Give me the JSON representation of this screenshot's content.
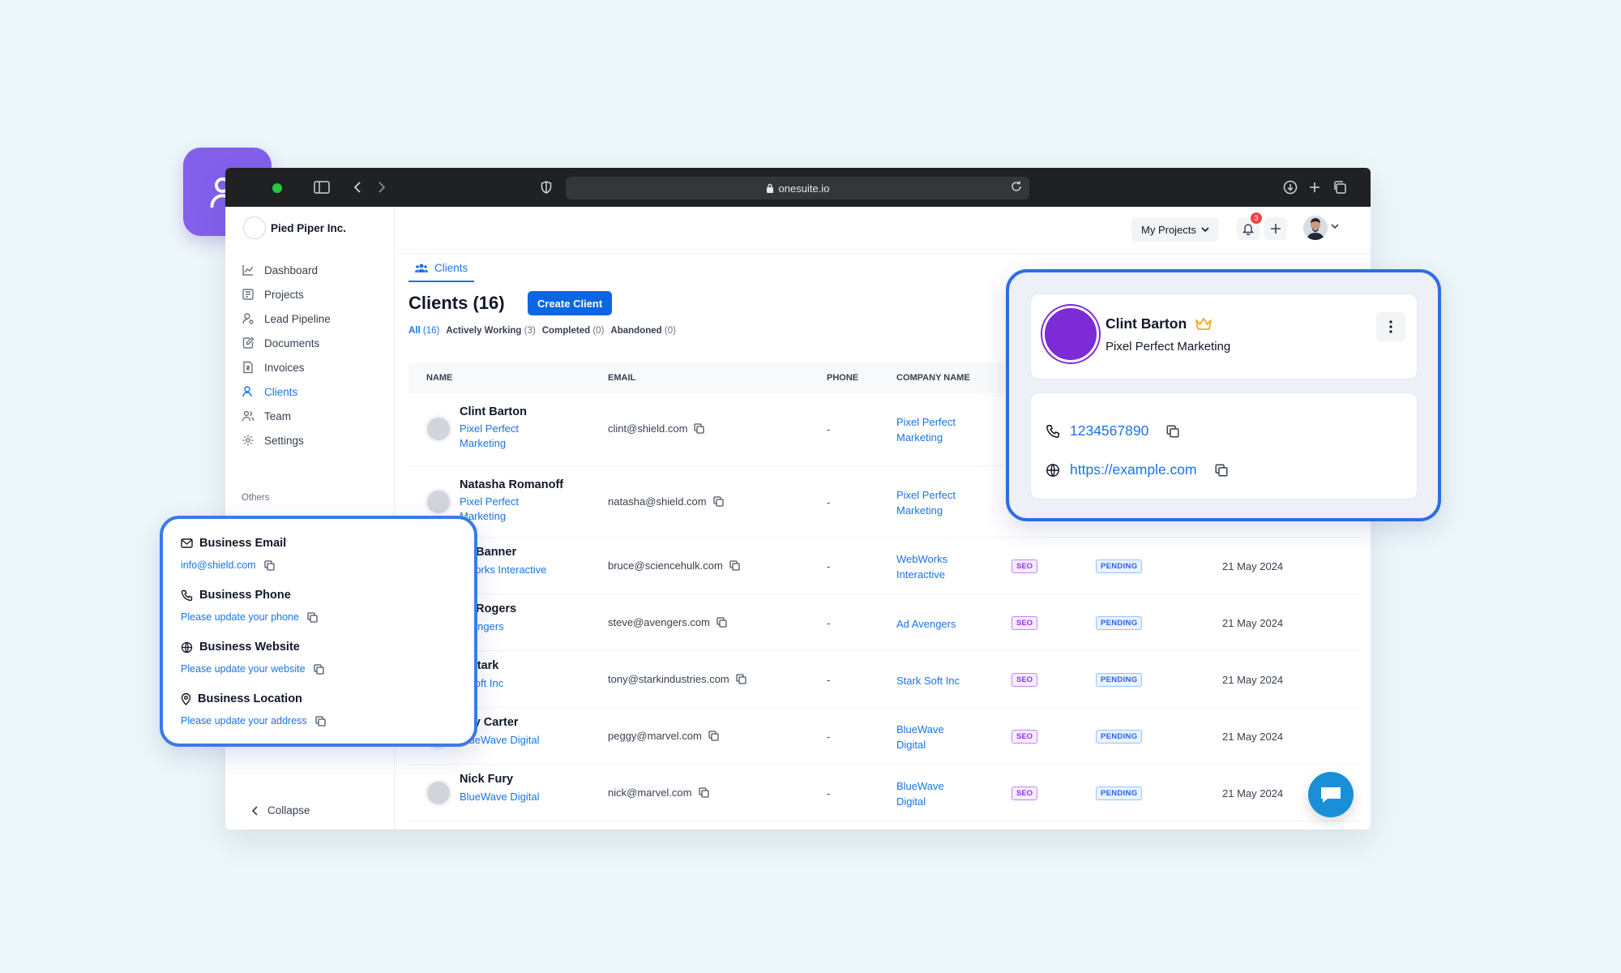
{
  "browser": {
    "url": "onesuite.io"
  },
  "sidebar": {
    "org_name": "Pied Piper Inc.",
    "items": [
      {
        "label": "Dashboard",
        "icon": "chart-line-icon"
      },
      {
        "label": "Projects",
        "icon": "projects-icon"
      },
      {
        "label": "Lead Pipeline",
        "icon": "lead-pipeline-icon"
      },
      {
        "label": "Documents",
        "icon": "document-edit-icon"
      },
      {
        "label": "Invoices",
        "icon": "invoice-icon"
      },
      {
        "label": "Clients",
        "icon": "user-icon",
        "active": true
      },
      {
        "label": "Team",
        "icon": "team-icon"
      },
      {
        "label": "Settings",
        "icon": "gear-icon"
      }
    ],
    "others_label": "Others",
    "collapse_label": "Collapse"
  },
  "topbar": {
    "projects_label": "My Projects",
    "notification_count": "3"
  },
  "main": {
    "tab_label": "Clients",
    "title": "Clients (16)",
    "create_label": "Create Client",
    "filters": [
      {
        "label": "All",
        "count": "(16)",
        "active": true
      },
      {
        "label": "Actively Working",
        "count": "(3)"
      },
      {
        "label": "Completed",
        "count": "(0)"
      },
      {
        "label": "Abandoned",
        "count": "(0)"
      }
    ],
    "columns": [
      "NAME",
      "EMAIL",
      "PHONE",
      "COMPANY NAME"
    ],
    "rows": [
      {
        "name": "Clint Barton",
        "company_short": "Pixel Perfect Marketing",
        "email": "clint@shield.com",
        "phone": "-",
        "company": "Pixel Perfect Marketing",
        "tag": "",
        "status": "",
        "date": ""
      },
      {
        "name": "Natasha Romanoff",
        "company_short": "Pixel Perfect Marketing",
        "email": "natasha@shield.com",
        "phone": "-",
        "company": "Pixel Perfect Marketing",
        "tag": "",
        "status": "",
        "date": ""
      },
      {
        "name": "ce Banner",
        "company_short": "bWorks Interactive",
        "email": "bruce@sciencehulk.com",
        "phone": "-",
        "company": "WebWorks Interactive",
        "tag": "SEO",
        "status": "PENDING",
        "date": "21 May 2024"
      },
      {
        "name": "ve Rogers",
        "company_short": "Avengers",
        "email": "steve@avengers.com",
        "phone": "-",
        "company": "Ad Avengers",
        "tag": "SEO",
        "status": "PENDING",
        "date": "21 May 2024"
      },
      {
        "name": "y Stark",
        "company_short": "k Soft Inc",
        "email": "tony@starkindustries.com",
        "phone": "-",
        "company": "Stark Soft Inc",
        "tag": "SEO",
        "status": "PENDING",
        "date": "21 May 2024"
      },
      {
        "name": "ggy Carter",
        "company_short": "BlueWave Digital",
        "email": "peggy@marvel.com",
        "phone": "-",
        "company": "BlueWave Digital",
        "tag": "SEO",
        "status": "PENDING",
        "date": "21 May 2024"
      },
      {
        "name": "Nick Fury",
        "company_short": "BlueWave Digital",
        "email": "nick@marvel.com",
        "phone": "-",
        "company": "BlueWave Digital",
        "tag": "SEO",
        "status": "PENDING",
        "date": "21 May 2024"
      }
    ]
  },
  "contact_card": {
    "email_label": "Business Email",
    "email_value": "info@shield.com",
    "phone_label": "Business Phone",
    "phone_value": "Please update your phone",
    "website_label": "Business Website",
    "website_value": "Please update your website",
    "location_label": "Business Location",
    "location_value": "Please update your address"
  },
  "profile_card": {
    "name": "Clint Barton",
    "company": "Pixel Perfect Marketing",
    "phone": "1234567890",
    "website": "https://example.com"
  },
  "colors": {
    "accent": "#1a73e8",
    "brand_purple": "#8360ec",
    "avatar_purple": "#7c2bd6",
    "seo": "#9333ea",
    "pending": "#2563eb"
  }
}
